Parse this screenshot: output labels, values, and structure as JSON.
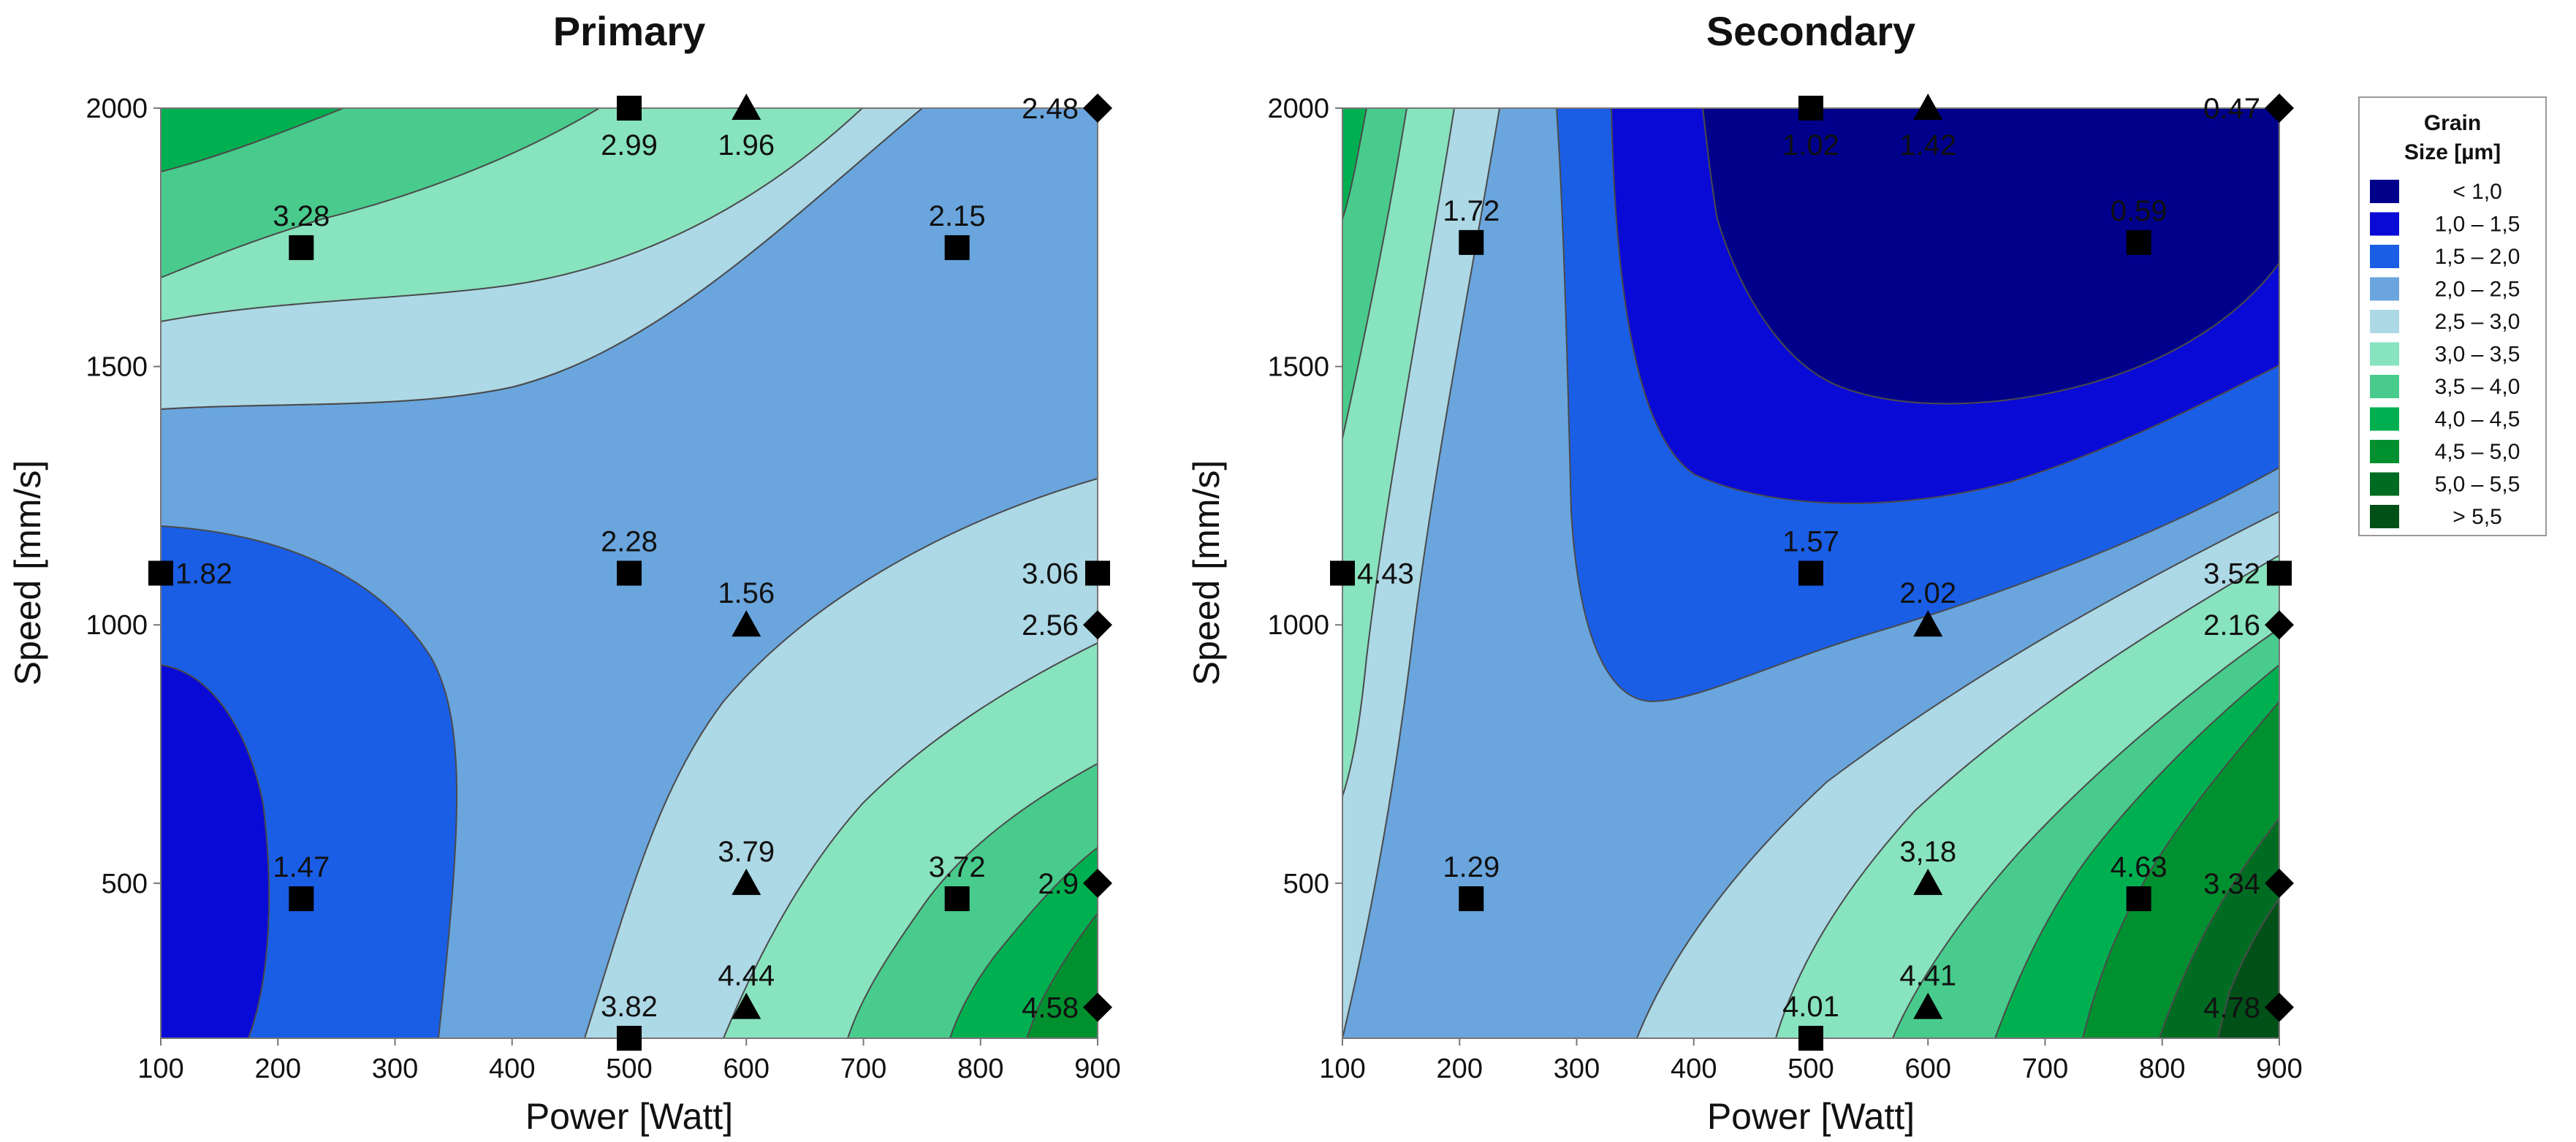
{
  "chart_data": [
    {
      "type": "contour",
      "title": "Primary",
      "xlabel": "Power [Watt]",
      "ylabel": "Speed [mm/s]",
      "xlim": [
        100,
        900
      ],
      "ylim": [
        200,
        2000
      ],
      "xticks": [
        100,
        200,
        300,
        400,
        500,
        600,
        700,
        800,
        900
      ],
      "yticks": [
        500,
        1000,
        1500,
        2000
      ],
      "points": [
        {
          "x": 100,
          "y": 1100,
          "value": "1.82",
          "marker": "square"
        },
        {
          "x": 220,
          "y": 1730,
          "value": "3.28",
          "marker": "square"
        },
        {
          "x": 220,
          "y": 470,
          "value": "1.47",
          "marker": "square"
        },
        {
          "x": 500,
          "y": 2000,
          "value": "2.99",
          "marker": "square"
        },
        {
          "x": 500,
          "y": 1100,
          "value": "2.28",
          "marker": "square"
        },
        {
          "x": 500,
          "y": 200,
          "value": "3.82",
          "marker": "square"
        },
        {
          "x": 600,
          "y": 2000,
          "value": "1.96",
          "marker": "triangle"
        },
        {
          "x": 600,
          "y": 1000,
          "value": "1.56",
          "marker": "triangle"
        },
        {
          "x": 600,
          "y": 500,
          "value": "3.79",
          "marker": "triangle"
        },
        {
          "x": 600,
          "y": 260,
          "value": "4.44",
          "marker": "triangle"
        },
        {
          "x": 780,
          "y": 1730,
          "value": "2.15",
          "marker": "square"
        },
        {
          "x": 780,
          "y": 470,
          "value": "3.72",
          "marker": "square"
        },
        {
          "x": 900,
          "y": 2000,
          "value": "2.48",
          "marker": "diamond"
        },
        {
          "x": 900,
          "y": 1100,
          "value": "3.06",
          "marker": "square"
        },
        {
          "x": 900,
          "y": 1000,
          "value": "2.56",
          "marker": "diamond"
        },
        {
          "x": 900,
          "y": 500,
          "value": "2.9",
          "marker": "diamond"
        },
        {
          "x": 900,
          "y": 260,
          "value": "4.58",
          "marker": "diamond"
        }
      ]
    },
    {
      "type": "contour",
      "title": "Secondary",
      "xlabel": "Power [Watt]",
      "ylabel": "Speed [mm/s]",
      "xlim": [
        100,
        900
      ],
      "ylim": [
        200,
        2000
      ],
      "xticks": [
        100,
        200,
        300,
        400,
        500,
        600,
        700,
        800,
        900
      ],
      "yticks": [
        500,
        1000,
        1500,
        2000
      ],
      "points": [
        {
          "x": 100,
          "y": 1100,
          "value": "4.43",
          "marker": "square"
        },
        {
          "x": 210,
          "y": 1740,
          "value": "1.72",
          "marker": "square"
        },
        {
          "x": 210,
          "y": 470,
          "value": "1.29",
          "marker": "square"
        },
        {
          "x": 500,
          "y": 2000,
          "value": "1.02",
          "marker": "square"
        },
        {
          "x": 500,
          "y": 1100,
          "value": "1.57",
          "marker": "square"
        },
        {
          "x": 500,
          "y": 200,
          "value": "4.01",
          "marker": "square"
        },
        {
          "x": 600,
          "y": 2000,
          "value": "1.42",
          "marker": "triangle"
        },
        {
          "x": 600,
          "y": 1000,
          "value": "2.02",
          "marker": "triangle"
        },
        {
          "x": 600,
          "y": 500,
          "value": "3,18",
          "marker": "triangle"
        },
        {
          "x": 600,
          "y": 260,
          "value": "4.41",
          "marker": "triangle"
        },
        {
          "x": 780,
          "y": 1740,
          "value": "0.59",
          "marker": "square"
        },
        {
          "x": 780,
          "y": 470,
          "value": "4.63",
          "marker": "square"
        },
        {
          "x": 900,
          "y": 2000,
          "value": "0.47",
          "marker": "diamond"
        },
        {
          "x": 900,
          "y": 1100,
          "value": "3.52",
          "marker": "square"
        },
        {
          "x": 900,
          "y": 1000,
          "value": "2.16",
          "marker": "diamond"
        },
        {
          "x": 900,
          "y": 500,
          "value": "3.34",
          "marker": "diamond"
        },
        {
          "x": 900,
          "y": 260,
          "value": "4.78",
          "marker": "diamond"
        }
      ]
    }
  ],
  "legend": {
    "title_line1": "Grain",
    "title_line2": "Size [µm]",
    "items": [
      {
        "label": "<  1,0",
        "color": "#00008b"
      },
      {
        "label": "1,0  –  1,5",
        "color": "#0a0ad6"
      },
      {
        "label": "1,5  –  2,0",
        "color": "#1a5ee6"
      },
      {
        "label": "2,0  –  2,5",
        "color": "#6aa5dd"
      },
      {
        "label": "2,5  –  3,0",
        "color": "#add8e6"
      },
      {
        "label": "3,0  –  3,5",
        "color": "#88e3bf"
      },
      {
        "label": "3,5  –  4,0",
        "color": "#48cb8c"
      },
      {
        "label": "4,0  –  4,5",
        "color": "#00b050"
      },
      {
        "label": "4,5  –  5,0",
        "color": "#00902f"
      },
      {
        "label": "5,0  –  5,5",
        "color": "#006c22"
      },
      {
        "label": ">  5,5",
        "color": "#005018"
      }
    ]
  }
}
